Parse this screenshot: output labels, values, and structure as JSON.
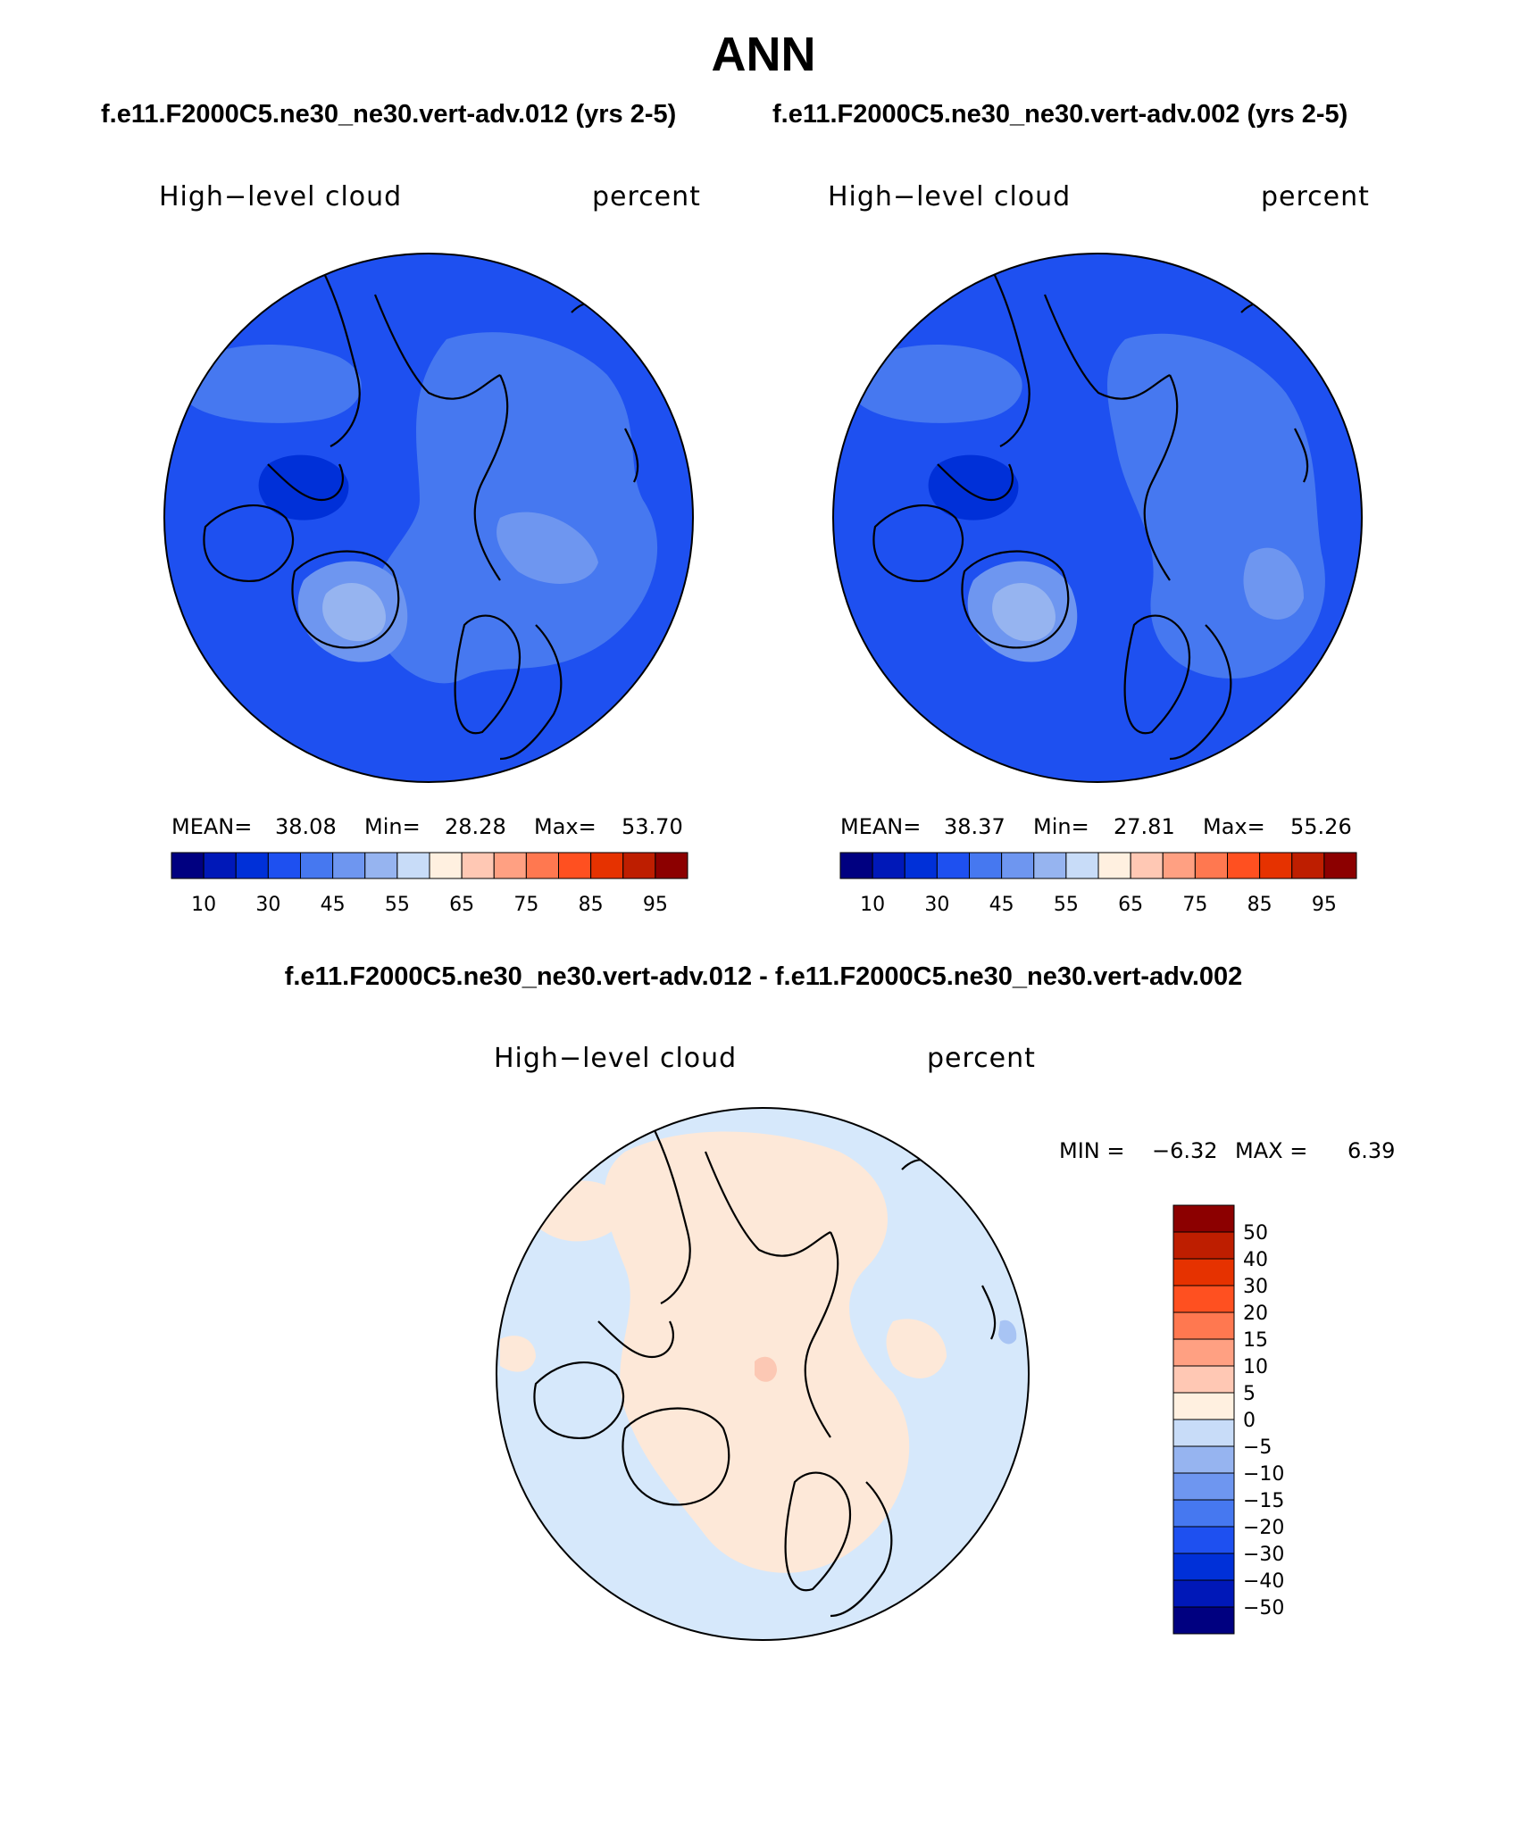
{
  "header": {
    "title": "ANN",
    "case1": "f.e11.F2000C5.ne30_ne30.vert-adv.012 (yrs 2-5)",
    "case2": "f.e11.F2000C5.ne30_ne30.vert-adv.002 (yrs 2-5)",
    "difference_title": "f.e11.F2000C5.ne30_ne30.vert-adv.012 - f.e11.F2000C5.ne30_ne30.vert-adv.002"
  },
  "panels": [
    {
      "variable": "High−level cloud",
      "units": "percent",
      "stats": {
        "mean_label": "MEAN=",
        "mean": "38.08",
        "min_label": "Min=",
        "min": "28.28",
        "max_label": "Max=",
        "max": "53.70"
      }
    },
    {
      "variable": "High−level cloud",
      "units": "percent",
      "stats": {
        "mean_label": "MEAN=",
        "mean": "38.37",
        "min_label": "Min=",
        "min": "27.81",
        "max_label": "Max=",
        "max": "55.26"
      }
    }
  ],
  "difference_panel": {
    "variable": "High−level cloud",
    "units": "percent",
    "min_label": "MIN =",
    "min": "−6.32",
    "max_label": "MAX =",
    "max": "6.39"
  },
  "colorbar_abs": {
    "colors": [
      "#000080",
      "#0018b8",
      "#0030d8",
      "#1e50f0",
      "#4678f0",
      "#6e96f0",
      "#96b4f0",
      "#c8dcf8",
      "#fff0e0",
      "#ffc8b4",
      "#ffa082",
      "#ff7850",
      "#ff5020",
      "#e63200",
      "#be1e00",
      "#8c0000"
    ],
    "ticks": [
      "10",
      "30",
      "45",
      "55",
      "65",
      "75",
      "85",
      "95"
    ]
  },
  "colorbar_diff": {
    "colors": [
      "#000080",
      "#0018b8",
      "#0030d8",
      "#1e50f0",
      "#4678f0",
      "#6e96f0",
      "#96b4f0",
      "#c8dcf8",
      "#fff0e0",
      "#ffc8b4",
      "#ffa082",
      "#ff7850",
      "#ff5020",
      "#e63200",
      "#be1e00",
      "#8c0000"
    ],
    "ticks": [
      "50",
      "40",
      "30",
      "20",
      "15",
      "10",
      "5",
      "0",
      "−5",
      "−10",
      "−15",
      "−20",
      "−30",
      "−40",
      "−50"
    ]
  },
  "map_colors": {
    "base_abs": "#1e50f0",
    "mid_abs": "#4678f0",
    "light_abs": "#6e96f0",
    "lighter_abs": "#96b4f0",
    "deep_abs": "#0030d8",
    "diff_neg": "#d6e8fb",
    "diff_pos": "#fde8d8",
    "diff_pos2": "#fcc8b4",
    "diff_neg2": "#a8c4f4"
  }
}
